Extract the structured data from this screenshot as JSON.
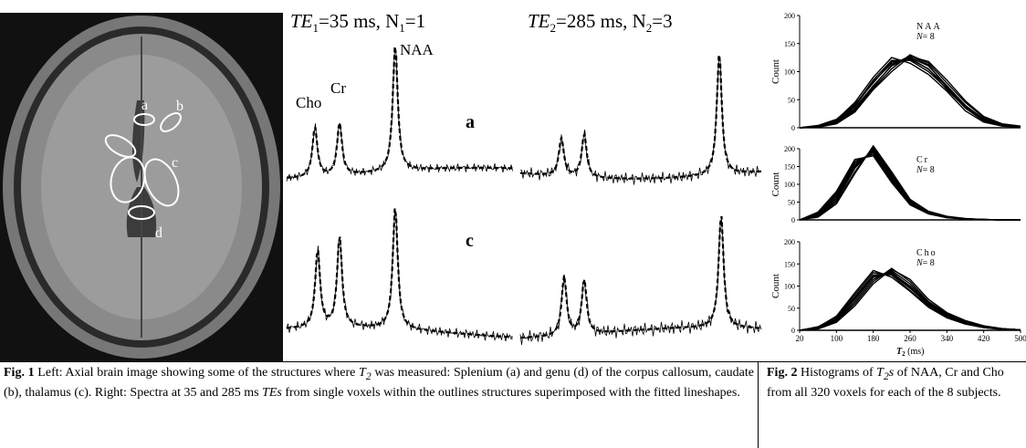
{
  "figure1": {
    "header1": [
      "TE",
      "1",
      "=35 ms, N",
      "1",
      "=1"
    ],
    "header2": [
      "TE",
      "2",
      "=285 ms, N",
      "2",
      "=3"
    ],
    "peak_labels": [
      "NAA",
      "Cho",
      "Cr"
    ],
    "spectra_labels": [
      "a",
      "c"
    ],
    "image_labels": [
      "a",
      "b",
      "c",
      "d"
    ]
  },
  "chart_data": [
    {
      "type": "line",
      "annotation": {
        "name": "NAA",
        "n_label": "N",
        "n_value": "= 8"
      },
      "ylabel": "Count",
      "x": [
        20,
        60,
        100,
        140,
        180,
        220,
        260,
        300,
        340,
        380,
        420,
        460,
        500
      ],
      "xlim": [
        20,
        500
      ],
      "ylim": [
        0,
        200
      ],
      "yticks": [
        0,
        50,
        100,
        150,
        200
      ],
      "series": [
        {
          "color": "#000",
          "values": [
            0,
            2,
            10,
            35,
            75,
            110,
            125,
            110,
            75,
            40,
            15,
            5,
            2
          ]
        },
        {
          "color": "#000",
          "values": [
            0,
            3,
            12,
            40,
            85,
            120,
            120,
            100,
            70,
            35,
            12,
            4,
            1
          ]
        },
        {
          "color": "#000",
          "values": [
            0,
            1,
            8,
            30,
            70,
            105,
            130,
            115,
            80,
            45,
            18,
            6,
            2
          ]
        },
        {
          "color": "#000",
          "values": [
            0,
            2,
            14,
            45,
            90,
            125,
            115,
            95,
            65,
            30,
            10,
            3,
            1
          ]
        },
        {
          "color": "#000",
          "values": [
            0,
            2,
            9,
            32,
            72,
            112,
            128,
            112,
            72,
            38,
            14,
            5,
            1
          ]
        },
        {
          "color": "#000",
          "values": [
            0,
            4,
            15,
            42,
            80,
            118,
            122,
            105,
            68,
            36,
            13,
            4,
            2
          ]
        },
        {
          "color": "#000",
          "values": [
            0,
            1,
            7,
            28,
            68,
            100,
            127,
            118,
            85,
            48,
            20,
            7,
            3
          ]
        },
        {
          "color": "#000",
          "values": [
            0,
            3,
            11,
            38,
            82,
            115,
            124,
            104,
            74,
            39,
            16,
            5,
            2
          ]
        }
      ]
    },
    {
      "type": "line",
      "annotation": {
        "name": "Cr",
        "n_label": "N",
        "n_value": "= 8"
      },
      "ylabel": "Count",
      "x": [
        20,
        60,
        100,
        140,
        180,
        220,
        260,
        300,
        340,
        380,
        420,
        460,
        500
      ],
      "xlim": [
        20,
        500
      ],
      "ylim": [
        0,
        200
      ],
      "yticks": [
        0,
        50,
        100,
        150,
        200
      ],
      "series": [
        {
          "color": "#000",
          "values": [
            0,
            15,
            60,
            150,
            195,
            120,
            50,
            20,
            8,
            3,
            1,
            0,
            0
          ]
        },
        {
          "color": "#000",
          "values": [
            0,
            20,
            75,
            165,
            185,
            110,
            45,
            18,
            7,
            2,
            1,
            0,
            0
          ]
        },
        {
          "color": "#000",
          "values": [
            0,
            10,
            50,
            135,
            205,
            130,
            55,
            22,
            9,
            3,
            1,
            0,
            0
          ]
        },
        {
          "color": "#000",
          "values": [
            0,
            18,
            70,
            160,
            190,
            115,
            48,
            19,
            8,
            3,
            1,
            0,
            0
          ]
        },
        {
          "color": "#000",
          "values": [
            0,
            12,
            55,
            145,
            200,
            125,
            52,
            21,
            8,
            3,
            1,
            0,
            0
          ]
        },
        {
          "color": "#000",
          "values": [
            0,
            22,
            80,
            170,
            180,
            105,
            42,
            17,
            6,
            2,
            1,
            0,
            0
          ]
        },
        {
          "color": "#000",
          "values": [
            0,
            8,
            45,
            130,
            208,
            135,
            58,
            24,
            10,
            4,
            1,
            0,
            0
          ]
        },
        {
          "color": "#000",
          "values": [
            0,
            16,
            65,
            155,
            192,
            118,
            50,
            20,
            8,
            3,
            1,
            0,
            0
          ]
        }
      ]
    },
    {
      "type": "line",
      "annotation": {
        "name": "Cho",
        "n_label": "N",
        "n_value": "= 8"
      },
      "ylabel": "Count",
      "xlabel": [
        "T",
        "2",
        " (ms)"
      ],
      "x": [
        20,
        60,
        100,
        140,
        180,
        220,
        260,
        300,
        340,
        380,
        420,
        460,
        500
      ],
      "xlim": [
        20,
        500
      ],
      "xticks": [
        20,
        100,
        180,
        260,
        340,
        420,
        500
      ],
      "ylim": [
        0,
        200
      ],
      "yticks": [
        0,
        50,
        100,
        150,
        200
      ],
      "series": [
        {
          "color": "#000",
          "values": [
            0,
            5,
            25,
            70,
            120,
            130,
            100,
            60,
            35,
            18,
            8,
            3,
            1
          ]
        },
        {
          "color": "#000",
          "values": [
            0,
            8,
            30,
            80,
            130,
            125,
            90,
            55,
            30,
            15,
            6,
            2,
            1
          ]
        },
        {
          "color": "#000",
          "values": [
            0,
            4,
            20,
            60,
            110,
            140,
            110,
            65,
            38,
            20,
            9,
            3,
            1
          ]
        },
        {
          "color": "#000",
          "values": [
            0,
            6,
            28,
            75,
            125,
            128,
            95,
            58,
            33,
            17,
            7,
            3,
            1
          ]
        },
        {
          "color": "#000",
          "values": [
            0,
            3,
            18,
            55,
            105,
            138,
            115,
            70,
            40,
            22,
            10,
            4,
            1
          ]
        },
        {
          "color": "#000",
          "values": [
            0,
            7,
            32,
            85,
            135,
            120,
            88,
            52,
            28,
            14,
            6,
            2,
            1
          ]
        },
        {
          "color": "#000",
          "values": [
            0,
            5,
            22,
            65,
            115,
            135,
            105,
            62,
            36,
            19,
            8,
            3,
            1
          ]
        },
        {
          "color": "#000",
          "values": [
            0,
            6,
            26,
            72,
            122,
            132,
            98,
            58,
            34,
            17,
            7,
            3,
            1
          ]
        }
      ]
    }
  ],
  "captions": {
    "fig1": [
      "Fig. 1",
      " Left: Axial brain image showing some of the structures where ",
      "T",
      "2",
      " was measured: Splenium (a) and genu (d) of the corpus callosum, caudate (b), thalamus (c). Right: Spectra at 35 and 285 ms ",
      "TEs",
      " from single voxels within the outlines structures superimposed with the fitted lineshapes."
    ],
    "fig2": [
      "Fig. 2",
      " Histograms of ",
      "T",
      "2",
      "s",
      " of NAA, Cr and Cho from all 320 voxels for each of the 8 subjects."
    ]
  }
}
